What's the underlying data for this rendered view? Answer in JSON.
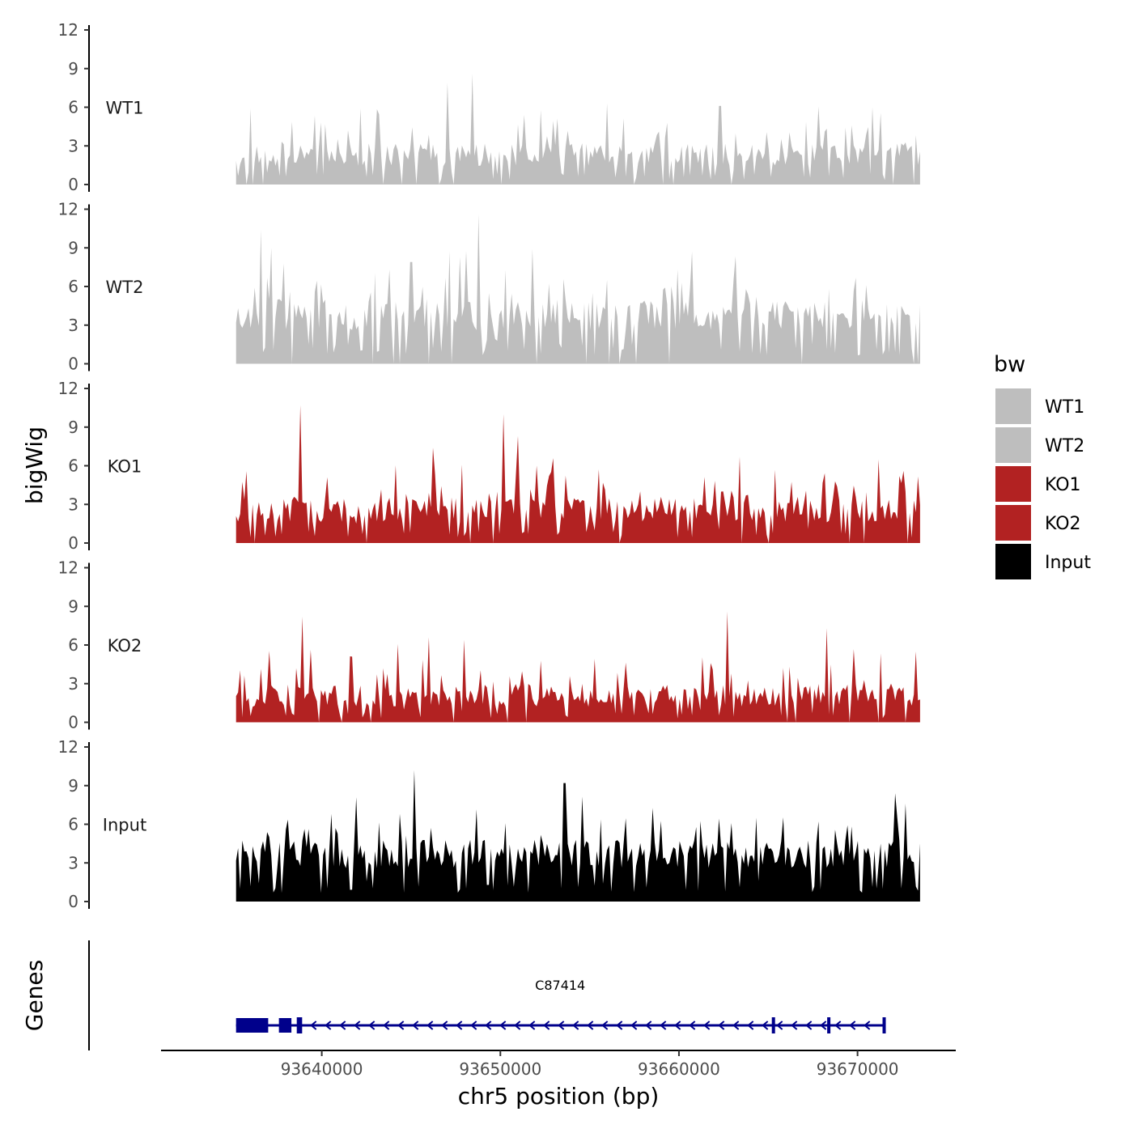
{
  "chart_data": {
    "type": "area",
    "genomic_region": {
      "chromosome": "chr5",
      "start": 93635200,
      "end": 93673500
    },
    "x_axis": {
      "title": "chr5 position (bp)",
      "ticks": [
        93640000,
        93650000,
        93660000,
        93670000
      ],
      "tick_labels": [
        "93640000",
        "93650000",
        "93660000",
        "93670000"
      ],
      "range": [
        93631000,
        93675500
      ]
    },
    "y_axis": {
      "title": "bigWig",
      "ticks": [
        0,
        3,
        6,
        9,
        12
      ],
      "tick_labels": [
        "0",
        "3",
        "6",
        "9",
        "12"
      ],
      "range": [
        0,
        12
      ]
    },
    "legend": {
      "title": "bw",
      "placement": "right",
      "entries": [
        {
          "label": "WT1",
          "color": "#bebebe"
        },
        {
          "label": "WT2",
          "color": "#bebebe"
        },
        {
          "label": "KO1",
          "color": "#b22222"
        },
        {
          "label": "KO2",
          "color": "#b22222"
        },
        {
          "label": "Input",
          "color": "#000000"
        }
      ]
    },
    "series": [
      {
        "name": "WT1",
        "color": "#bebebe",
        "seed": 11,
        "base": 1.4,
        "noise": 1.8,
        "spike_prob": 0.18,
        "spike_mag": 3.2,
        "gap_prob": 0.04,
        "peaks": [
          [
            93636000,
            5.9
          ],
          [
            93647000,
            7.9
          ],
          [
            93648400,
            8.6
          ],
          [
            93651300,
            5.4
          ],
          [
            93656000,
            6.3
          ],
          [
            93662300,
            6.1
          ],
          [
            93670800,
            6.0
          ]
        ]
      },
      {
        "name": "WT2",
        "color": "#bebebe",
        "seed": 23,
        "base": 2.6,
        "noise": 2.4,
        "spike_prob": 0.22,
        "spike_mag": 4.0,
        "gap_prob": 0.03,
        "peaks": [
          [
            93636600,
            10.4
          ],
          [
            93637200,
            9.0
          ],
          [
            93645000,
            7.9
          ],
          [
            93648800,
            11.6
          ],
          [
            93651800,
            8.9
          ],
          [
            93660700,
            8.7
          ],
          [
            93670500,
            6.1
          ]
        ]
      },
      {
        "name": "KO1",
        "color": "#b22222",
        "seed": 37,
        "base": 1.6,
        "noise": 2.0,
        "spike_prob": 0.2,
        "spike_mag": 3.6,
        "gap_prob": 0.03,
        "peaks": [
          [
            93638800,
            10.7
          ],
          [
            93646200,
            7.4
          ],
          [
            93650200,
            10.0
          ],
          [
            93651000,
            8.3
          ],
          [
            93663400,
            6.7
          ],
          [
            93672600,
            5.6
          ]
        ]
      },
      {
        "name": "KO2",
        "color": "#b22222",
        "seed": 53,
        "base": 1.2,
        "noise": 1.8,
        "spike_prob": 0.2,
        "spike_mag": 3.4,
        "gap_prob": 0.04,
        "peaks": [
          [
            93638900,
            8.2
          ],
          [
            93646000,
            6.6
          ],
          [
            93648000,
            6.4
          ],
          [
            93662700,
            8.6
          ],
          [
            93668300,
            7.3
          ],
          [
            93673300,
            5.5
          ]
        ]
      },
      {
        "name": "Input",
        "color": "#000000",
        "seed": 71,
        "base": 2.6,
        "noise": 2.2,
        "spike_prob": 0.22,
        "spike_mag": 3.4,
        "gap_prob": 0.0,
        "peaks": [
          [
            93640500,
            6.8
          ],
          [
            93641900,
            8.1
          ],
          [
            93644400,
            6.8
          ],
          [
            93645200,
            10.2
          ],
          [
            93653600,
            9.2
          ],
          [
            93664300,
            6.5
          ],
          [
            93672100,
            8.4
          ],
          [
            93672700,
            7.6
          ]
        ]
      }
    ],
    "genes_track": {
      "title": "Genes",
      "color": "#00008b",
      "genes": [
        {
          "name": "C87414",
          "strand": "-",
          "start": 93635200,
          "end": 93671500,
          "exons": [
            [
              93635200,
              93637000
            ],
            [
              93637600,
              93638300
            ],
            [
              93638600,
              93638900
            ],
            [
              93665200,
              93665300
            ],
            [
              93668300,
              93668400
            ],
            [
              93671400,
              93671500
            ]
          ]
        }
      ]
    }
  }
}
